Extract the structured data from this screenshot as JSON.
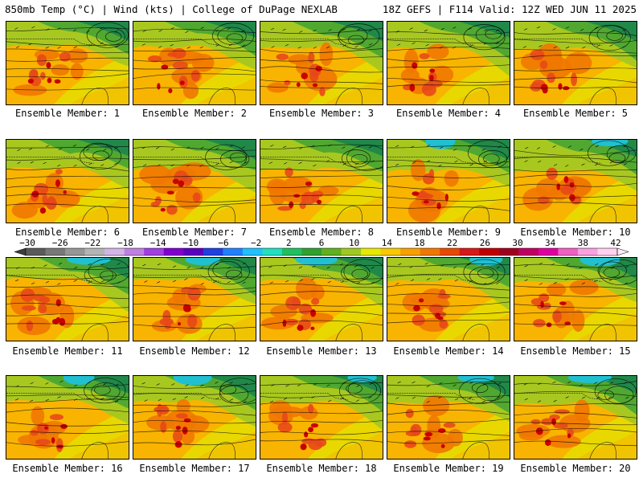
{
  "header": {
    "left": "850mb Temp (°C) | Wind (kts) | College of DuPage NEXLAB",
    "right": "18Z GEFS | F114 Valid: 12Z WED JUN 11 2025"
  },
  "panels": [
    {
      "label": "Ensemble Member: 1"
    },
    {
      "label": "Ensemble Member: 2"
    },
    {
      "label": "Ensemble Member: 3"
    },
    {
      "label": "Ensemble Member: 4"
    },
    {
      "label": "Ensemble Member: 5"
    },
    {
      "label": "Ensemble Member: 6"
    },
    {
      "label": "Ensemble Member: 7"
    },
    {
      "label": "Ensemble Member: 8"
    },
    {
      "label": "Ensemble Member: 9"
    },
    {
      "label": "Ensemble Member: 10"
    },
    {
      "label": "Ensemble Member: 11"
    },
    {
      "label": "Ensemble Member: 12"
    },
    {
      "label": "Ensemble Member: 13"
    },
    {
      "label": "Ensemble Member: 14"
    },
    {
      "label": "Ensemble Member: 15"
    },
    {
      "label": "Ensemble Member: 16"
    },
    {
      "label": "Ensemble Member: 17"
    },
    {
      "label": "Ensemble Member: 18"
    },
    {
      "label": "Ensemble Member: 19"
    },
    {
      "label": "Ensemble Member: 20"
    }
  ],
  "colorbar": {
    "tick_labels": [
      "−30",
      "−26",
      "−22",
      "−18",
      "−14",
      "−10",
      "−6",
      "−2",
      "2",
      "6",
      "10",
      "14",
      "18",
      "22",
      "26",
      "30",
      "34",
      "38",
      "42"
    ],
    "colors": [
      "#5a5a5a",
      "#787878",
      "#969696",
      "#b4b4b4",
      "#d2b4e6",
      "#c080e0",
      "#a040e0",
      "#8000d0",
      "#5a00c0",
      "#2040e0",
      "#2080ff",
      "#20c0ff",
      "#20e0c0",
      "#20c060",
      "#30a030",
      "#60b020",
      "#a0c820",
      "#e8e800",
      "#f8c800",
      "#f8a000",
      "#f07800",
      "#e84800",
      "#d81818",
      "#c00000",
      "#a00020",
      "#c00060",
      "#e000a0",
      "#f060c0",
      "#f8a0e0",
      "#ffd0f0"
    ]
  }
}
